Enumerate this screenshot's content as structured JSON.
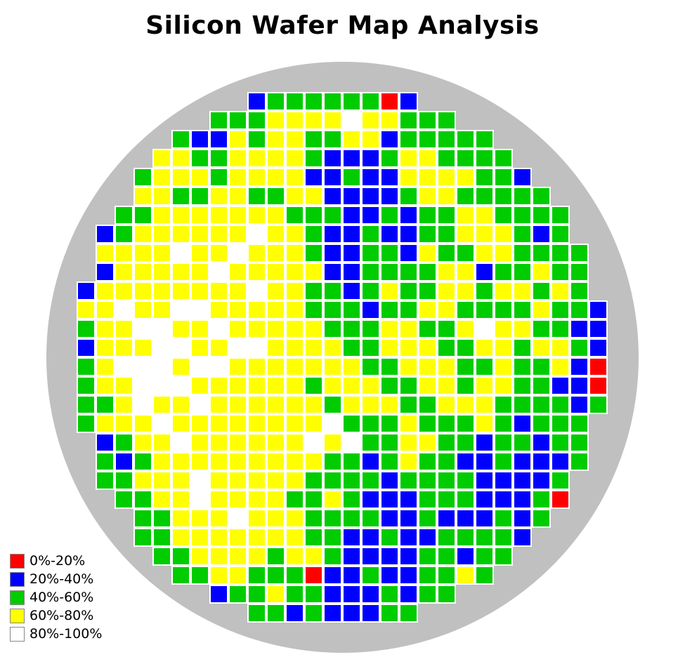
{
  "title": "Silicon Wafer Map Analysis",
  "colors": {
    "page_background": "#ffffff",
    "wafer_background": "#c0c0c0",
    "die_border": "#ffffff"
  },
  "legend": {
    "items": [
      {
        "key": "R",
        "label": "0%-20%",
        "color": "#ff0000"
      },
      {
        "key": "B",
        "label": "20%-40%",
        "color": "#0000ff"
      },
      {
        "key": "G",
        "label": "40%-60%",
        "color": "#00cc00"
      },
      {
        "key": "Y",
        "label": "60%-80%",
        "color": "#ffff00"
      },
      {
        "key": "W",
        "label": "80%-100%",
        "color": "#ffffff"
      }
    ]
  },
  "chart_data": {
    "type": "heatmap",
    "title": "Silicon Wafer Map Analysis",
    "description": "Circular silicon wafer die map; each cell is one die colored by yield bin; '.' means no die (outside wafer).",
    "rows": 28,
    "cols": 28,
    "encoding": {
      "R": {
        "label": "0%-20%",
        "color": "#ff0000"
      },
      "B": {
        "label": "20%-40%",
        "color": "#0000ff"
      },
      "G": {
        "label": "40%-60%",
        "color": "#00cc00"
      },
      "Y": {
        "label": "60%-80%",
        "color": "#ffff00"
      },
      "W": {
        "label": "80%-100%",
        "color": "#ffffff"
      },
      ".": {
        "label": "no die",
        "color": null
      }
    },
    "grid": [
      ".........BGGGGGGRB..........",
      ".......GGGYYYYWYYGGG........",
      ".....GBBYGYYGGYYBGGGGG......",
      "....YYGGYYYYGBBBGYYGGGG.....",
      "...GYYYGYYYYBBGBBYYYYGGB....",
      "...YYGGYYGGYYBBBBGYYGGGGG...",
      "..GGYYYYYYYGGGBBGBGGYYGGGG..",
      ".BGYYYYYYWYYGBBGBBGGYYYGBG..",
      ".YYYYWYYWYYYGBBGGBYGGYYGGGG.",
      ".BYYYYYWYYYYYBBGGGGYYBGGYGG.",
      "BYYYYYYYYWYYGGBGYGGYYGYYGYG.",
      "YYWYYWWYYYYYGGGBGGYYGGGGYGGB",
      "GYYWWYYWYYYYYGGGYYGGYWYYGGBB",
      "BYYYWWYYWWYYYYGGYYYGGYYGYYGB",
      "GYWWWYWWYYYYYYYGGYYYGGYGGYBR",
      "GYYWWWYYYYYYGYYYGGYYGYYGGBBR",
      "GGYWYYWYYYYYYGYYYGGYYYGGGGBG",
      "GYYYWYYYYYYYYWGGGYGGGYGBGGG.",
      ".BGYYWYYYYYYWYWGGYYGGBGGBGG.",
      ".GBGYYYYYYYYYGGBGYGGBBGBBBG.",
      ".GGYYYWYYYYYGGGGBGGGGBBBBG..",
      "..GGYYWYYYYGGYGBBBGGGBBBGR..",
      "...GGYYYWYYYGGGGBBGBBBGBG...",
      "...GGYYYYYYYGGBBGBBGGGGB....",
      "....GGYYYYGYYGBBBBGGBGG.....",
      ".....GGYYGGGRBBGBBGGYG......",
      ".......BGGYGGBBBGBGG........",
      ".........GGBGBBBGG.........."
    ]
  }
}
